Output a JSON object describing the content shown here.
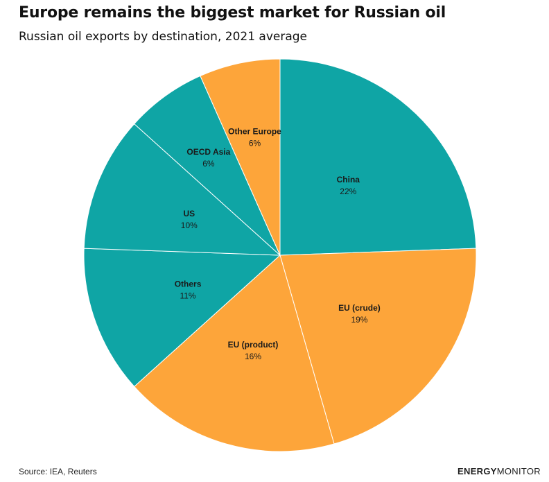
{
  "chart_data": {
    "type": "pie",
    "title": "Europe remains the biggest market for Russian oil",
    "subtitle": "Russian oil exports by destination, 2021 average",
    "slices": [
      {
        "label": "China",
        "value": 22,
        "value_label": "22%",
        "color": "#0fa5a5"
      },
      {
        "label": "EU (crude)",
        "value": 19,
        "value_label": "19%",
        "color": "#fda53a"
      },
      {
        "label": "EU (product)",
        "value": 16,
        "value_label": "16%",
        "color": "#fda53a"
      },
      {
        "label": "Others",
        "value": 11,
        "value_label": "11%",
        "color": "#0fa5a5"
      },
      {
        "label": "US",
        "value": 10,
        "value_label": "10%",
        "color": "#0fa5a5"
      },
      {
        "label": "OECD Asia",
        "value": 6,
        "value_label": "6%",
        "color": "#0fa5a5"
      },
      {
        "label": "Other Europe",
        "value": 6,
        "value_label": "6%",
        "color": "#fda53a"
      }
    ],
    "start_angle": "12 o'clock",
    "direction": "clockwise",
    "legend": "none"
  },
  "footer": {
    "source": "Source: IEA, Reuters",
    "brand_bold": "ENERGY",
    "brand_light": "MONITOR"
  }
}
